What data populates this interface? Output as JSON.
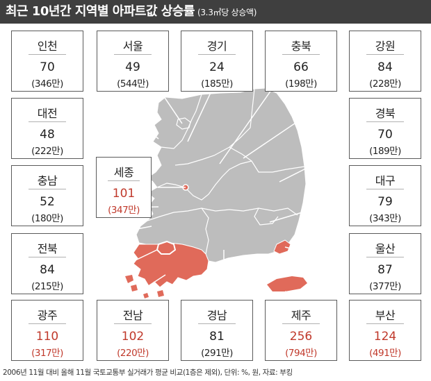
{
  "header": {
    "title": "최근 10년간 지역별 아파트값 상승률",
    "subtitle": "(3.3㎡당 상승액)"
  },
  "colors": {
    "header_bg": "#3f3f3f",
    "land": "#bdbdbd",
    "highlight": "#e06a5a",
    "highlight_text": "#c0392b"
  },
  "regions": {
    "incheon": {
      "name": "인천",
      "rate": "70",
      "price": "(346만)",
      "highlight": false
    },
    "seoul": {
      "name": "서울",
      "rate": "49",
      "price": "(544만)",
      "highlight": false
    },
    "gyeonggi": {
      "name": "경기",
      "rate": "24",
      "price": "(185만)",
      "highlight": false
    },
    "chungbuk": {
      "name": "충북",
      "rate": "66",
      "price": "(198만)",
      "highlight": false
    },
    "gangwon": {
      "name": "강원",
      "rate": "84",
      "price": "(228만)",
      "highlight": false
    },
    "daejeon": {
      "name": "대전",
      "rate": "48",
      "price": "(222만)",
      "highlight": false
    },
    "gyeongbuk": {
      "name": "경북",
      "rate": "70",
      "price": "(189만)",
      "highlight": false
    },
    "sejong": {
      "name": "세종",
      "rate": "101",
      "price": "(347만)",
      "highlight": true
    },
    "chungnam": {
      "name": "충남",
      "rate": "52",
      "price": "(180만)",
      "highlight": false
    },
    "daegu": {
      "name": "대구",
      "rate": "79",
      "price": "(343만)",
      "highlight": false
    },
    "jeonbuk": {
      "name": "전북",
      "rate": "84",
      "price": "(215만)",
      "highlight": false
    },
    "ulsan": {
      "name": "울산",
      "rate": "87",
      "price": "(377만)",
      "highlight": false
    },
    "gwangju": {
      "name": "광주",
      "rate": "110",
      "price": "(317만)",
      "highlight": true
    },
    "jeonnam": {
      "name": "전남",
      "rate": "102",
      "price": "(220만)",
      "highlight": true
    },
    "gyeongnam": {
      "name": "경남",
      "rate": "81",
      "price": "(291만)",
      "highlight": false
    },
    "jeju": {
      "name": "제주",
      "rate": "256",
      "price": "(794만)",
      "highlight": true
    },
    "busan": {
      "name": "부산",
      "rate": "124",
      "price": "(491만)",
      "highlight": true
    }
  },
  "footer": "2006년 11월 대비 올해 11월 국토교통부 실거래가 평균 비교(1층은 제외), 단위: %, 원, 자료: 부킹"
}
